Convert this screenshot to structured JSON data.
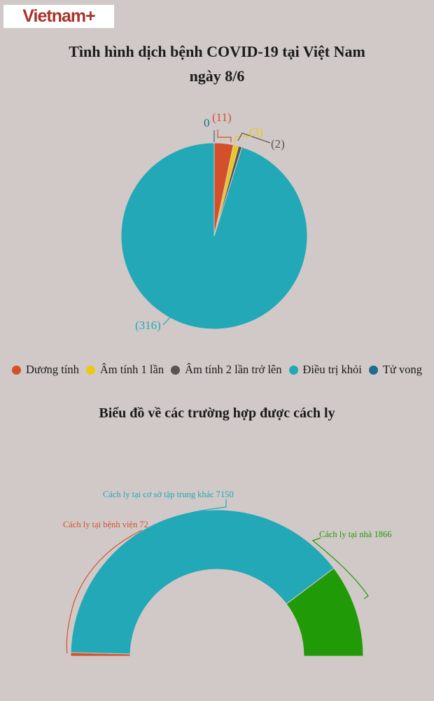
{
  "page": {
    "background": "#d1c9c7",
    "text_color": "#1b1b1b"
  },
  "logo": {
    "text": "Vietnam+",
    "color": "#a83428",
    "background": "#ffffff"
  },
  "pie_section": {
    "title_line1": "Tình hình dịch bệnh COVID-19 tại Việt Nam",
    "title_line2": "ngày 8/6"
  },
  "donut_section": {
    "title": "Biểu đồ về các trường hợp được cách ly"
  },
  "legend": {
    "items": [
      {
        "label": "Dương tính",
        "color": "#d3502a"
      },
      {
        "label": "Âm tính 1 lần",
        "color": "#ecc813"
      },
      {
        "label": "Âm tính 2 lần trở lên",
        "color": "#5a544f"
      },
      {
        "label": "Điều trị khỏi",
        "color": "#22a8b7"
      },
      {
        "label": "Tử vong",
        "color": "#1f6c8e"
      }
    ]
  },
  "chart_data": [
    {
      "type": "pie",
      "title": "Tình hình dịch bệnh COVID-19 tại Việt Nam ngày 8/6",
      "categories": [
        "Dương tính",
        "Âm tính 1 lần",
        "Âm tính 2 lần trở lên",
        "Điều trị khỏi",
        "Tử vong"
      ],
      "values": [
        11,
        3,
        2,
        316,
        0
      ],
      "colors": [
        "#d3502a",
        "#ecc813",
        "#5a544f",
        "#22a8b7",
        "#1f6c8e"
      ],
      "data_labels": [
        "(11)",
        "(3)",
        "(2)",
        "(316)",
        "0"
      ],
      "start_angle_deg": 0,
      "direction": "clockwise",
      "legend_position": "bottom"
    },
    {
      "type": "pie",
      "variant": "half-donut",
      "title": "Biểu đồ về các trường hợp được cách ly",
      "categories": [
        "Cách ly tại bệnh viện",
        "Cách ly tại cơ sở tập trung khác",
        "Cách ly tại nhà"
      ],
      "values": [
        72,
        7150,
        1866
      ],
      "colors": [
        "#d3502a",
        "#22a8b7",
        "#219a08"
      ],
      "data_labels": [
        "Cách ly tại bệnh viện 72",
        "Cách ly tại cơ sở tập trung khác 7150",
        "Cách ly tại nhà 1866"
      ],
      "span_deg": 180,
      "direction": "clockwise"
    }
  ]
}
